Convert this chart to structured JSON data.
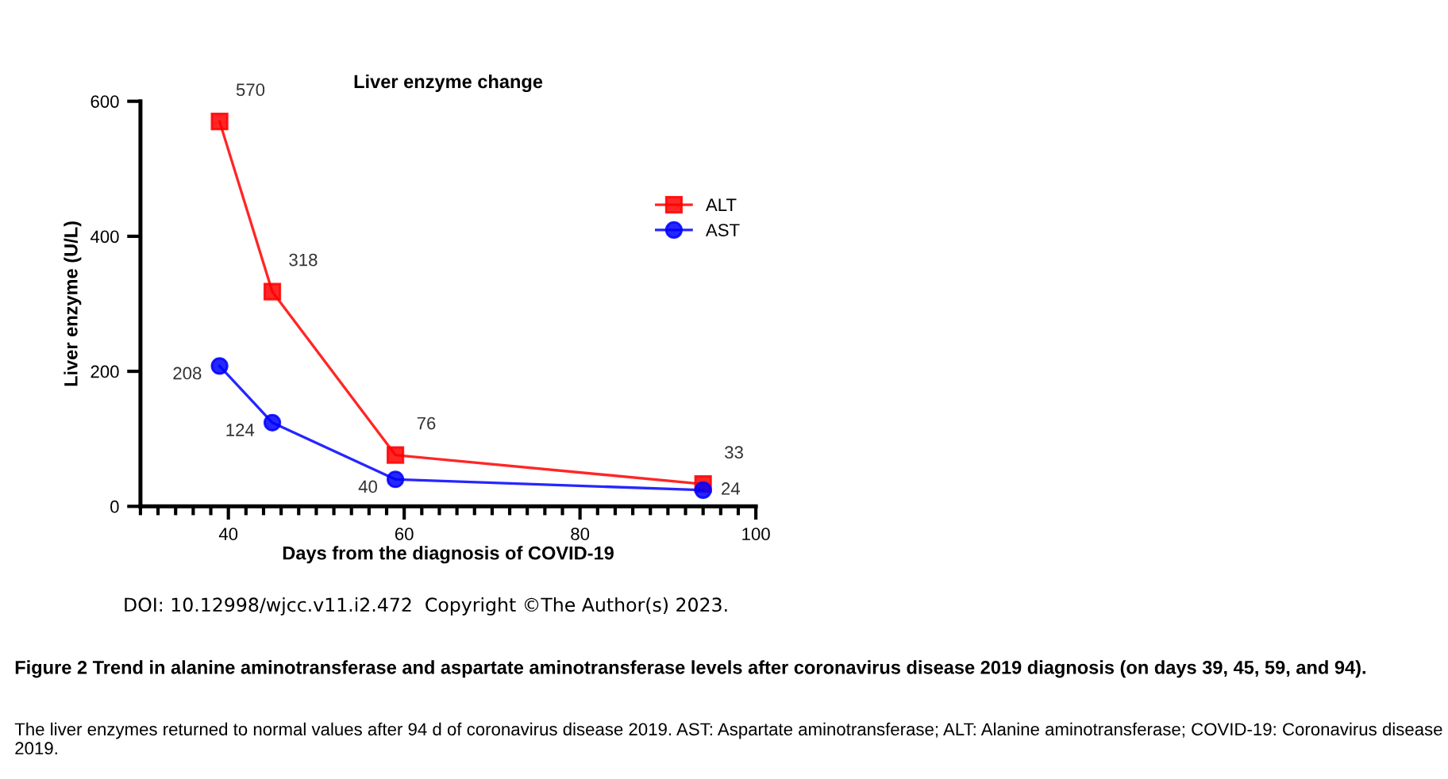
{
  "chart_data": {
    "type": "line",
    "title": "Liver enzyme change",
    "xlabel": "Days from the diagnosis of COVID-19",
    "ylabel": "Liver enzyme (U/L)",
    "x": [
      39,
      45,
      59,
      94
    ],
    "series": [
      {
        "name": "ALT",
        "color": "#ff0000",
        "marker": "square",
        "values": [
          570,
          318,
          76,
          33
        ]
      },
      {
        "name": "AST",
        "color": "#0000ff",
        "marker": "circle",
        "values": [
          208,
          124,
          40,
          24
        ]
      }
    ],
    "xlim": [
      30,
      100
    ],
    "xticks": [
      40,
      60,
      80,
      100
    ],
    "ylim": [
      0,
      600
    ],
    "yticks": [
      0,
      200,
      400,
      600
    ],
    "grid": false,
    "legend": "top right",
    "data_labels": true,
    "line_style": "solid",
    "annotations": [
      "DOI: 10.12998/wjcc.v11.i2.472  Copyright ©The Author(s) 2023.",
      "Figure 2 Trend in alanine aminotransferase and aspartate aminotransferase levels after coronavirus disease 2019 diagnosis (on days 39, 45, 59, and 94).",
      "The liver enzymes returned to normal values after 94 d of coronavirus disease 2019. AST: Aspartate aminotransferase; ALT: Alanine aminotransferase; COVID-19: Coronavirus disease 2019."
    ]
  }
}
